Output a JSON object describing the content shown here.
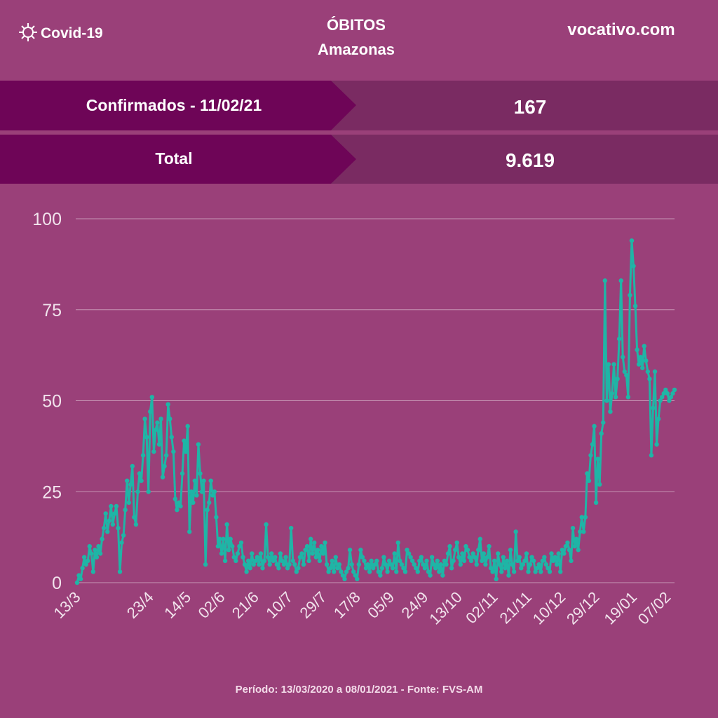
{
  "header": {
    "brand": "Covid-19",
    "title": "ÓBITOS",
    "subtitle": "Amazonas",
    "site": "vocativo.com"
  },
  "stats": [
    {
      "label": "Confirmados - 11/02/21",
      "value": "167"
    },
    {
      "label": "Total",
      "value": "9.619"
    }
  ],
  "footer": "Período: 13/03/2020 a 08/01/2021 - Fonte: FVS-AM",
  "chart_data": {
    "type": "line",
    "color": "#1fb5a6",
    "grid": true,
    "ylim": [
      0,
      100
    ],
    "yticks": [
      0,
      25,
      50,
      75,
      100
    ],
    "categories": [
      "13/3",
      null,
      null,
      null,
      null,
      null,
      null,
      null,
      null,
      null,
      null,
      null,
      null,
      null,
      null,
      null,
      null,
      null,
      null,
      null,
      null,
      null,
      null,
      null,
      null,
      null,
      null,
      null,
      null,
      null,
      null,
      null,
      null,
      null,
      null,
      null,
      null,
      null,
      null,
      null,
      null,
      "23/4",
      null,
      null,
      null,
      null,
      null,
      null,
      null,
      null,
      null,
      null,
      null,
      null,
      null,
      null,
      null,
      null,
      null,
      null,
      null,
      null,
      "14/5",
      null,
      null,
      null,
      null,
      null,
      null,
      null,
      null,
      null,
      null,
      null,
      null,
      null,
      null,
      null,
      null,
      null,
      null,
      "02/6",
      null,
      null,
      null,
      null,
      null,
      null,
      null,
      null,
      null,
      null,
      null,
      null,
      null,
      null,
      null,
      null,
      null,
      null,
      "21/6",
      null,
      null,
      null,
      null,
      null,
      null,
      null,
      null,
      null,
      null,
      null,
      null,
      null,
      null,
      null,
      null,
      null,
      null,
      "10/7",
      null,
      null,
      null,
      null,
      null,
      null,
      null,
      null,
      null,
      null,
      null,
      null,
      null,
      null,
      null,
      null,
      null,
      null,
      "29/7",
      null,
      null,
      null,
      null,
      null,
      null,
      null,
      null,
      null,
      null,
      null,
      null,
      null,
      null,
      null,
      null,
      null,
      null,
      "17/8",
      null,
      null,
      null,
      null,
      null,
      null,
      null,
      null,
      null,
      null,
      null,
      null,
      null,
      null,
      null,
      null,
      null,
      null,
      "05/9",
      null,
      null,
      null,
      null,
      null,
      null,
      null,
      null,
      null,
      null,
      null,
      null,
      null,
      null,
      null,
      null,
      null,
      null,
      "24/9",
      null,
      null,
      null,
      null,
      null,
      null,
      null,
      null,
      null,
      null,
      null,
      null,
      null,
      null,
      null,
      null,
      null,
      null,
      "13/10",
      null,
      null,
      null,
      null,
      null,
      null,
      null,
      null,
      null,
      null,
      null,
      null,
      null,
      null,
      null,
      null,
      null,
      null,
      null,
      "02/11",
      null,
      null,
      null,
      null,
      null,
      null,
      null,
      null,
      null,
      null,
      null,
      null,
      null,
      null,
      null,
      null,
      null,
      null,
      "21/11",
      null,
      null,
      null,
      null,
      null,
      null,
      null,
      null,
      null,
      null,
      null,
      null,
      null,
      null,
      null,
      null,
      null,
      null,
      "10/12",
      null,
      null,
      null,
      null,
      null,
      null,
      null,
      null,
      null,
      null,
      null,
      null,
      null,
      null,
      null,
      null,
      null,
      null,
      "29/12",
      null,
      null,
      null,
      null,
      null,
      null,
      null,
      null,
      null,
      null,
      null,
      null,
      null,
      null,
      null,
      null,
      null,
      null,
      null,
      null,
      "19/01",
      null,
      null,
      null,
      null,
      null,
      null,
      null,
      null,
      null,
      null,
      null,
      null,
      null,
      null,
      null,
      null,
      null,
      null,
      "07/02",
      null,
      null,
      null,
      null
    ],
    "values": [
      0,
      2,
      1,
      4,
      7,
      5,
      6,
      10,
      8,
      3,
      9,
      7,
      10,
      8,
      12,
      15,
      19,
      14,
      17,
      21,
      16,
      19,
      21,
      15,
      3,
      11,
      13,
      20,
      28,
      22,
      27,
      32,
      18,
      16,
      25,
      30,
      28,
      35,
      45,
      40,
      25,
      47,
      51,
      36,
      42,
      44,
      38,
      45,
      29,
      32,
      35,
      49,
      45,
      40,
      36,
      23,
      20,
      22,
      21,
      30,
      39,
      36,
      43,
      14,
      25,
      22,
      28,
      24,
      38,
      30,
      25,
      28,
      5,
      20,
      22,
      28,
      24,
      25,
      18,
      10,
      12,
      8,
      12,
      6,
      16,
      9,
      12,
      10,
      7,
      6,
      8,
      10,
      11,
      7,
      5,
      3,
      6,
      4,
      8,
      5,
      6,
      7,
      5,
      8,
      4,
      6,
      16,
      7,
      5,
      8,
      6,
      7,
      5,
      4,
      8,
      6,
      5,
      7,
      4,
      5,
      15,
      6,
      5,
      3,
      4,
      7,
      8,
      5,
      9,
      10,
      6,
      12,
      8,
      11,
      7,
      9,
      6,
      10,
      8,
      11,
      5,
      3,
      4,
      6,
      3,
      7,
      4,
      5,
      3,
      2,
      1,
      3,
      4,
      9,
      5,
      3,
      2,
      1,
      5,
      9,
      7,
      6,
      4,
      5,
      3,
      6,
      4,
      5,
      6,
      3,
      2,
      4,
      7,
      5,
      3,
      6,
      5,
      4,
      8,
      3,
      11,
      6,
      5,
      4,
      3,
      9,
      8,
      7,
      6,
      5,
      4,
      3,
      6,
      7,
      5,
      4,
      6,
      3,
      2,
      7,
      5,
      4,
      6,
      3,
      5,
      2,
      6,
      5,
      8,
      10,
      4,
      6,
      9,
      11,
      7,
      5,
      8,
      6,
      10,
      9,
      7,
      6,
      8,
      7,
      5,
      9,
      12,
      6,
      8,
      5,
      7,
      10,
      4,
      3,
      6,
      1,
      8,
      5,
      3,
      7,
      4,
      6,
      2,
      9,
      5,
      3,
      14,
      6,
      7,
      4,
      5,
      6,
      8,
      3,
      5,
      7,
      6,
      3,
      4,
      5,
      3,
      6,
      7,
      5,
      4,
      3,
      8,
      6,
      7,
      5,
      8,
      3,
      9,
      8,
      10,
      11,
      9,
      6,
      15,
      10,
      12,
      9,
      14,
      18,
      14,
      18,
      30,
      28,
      35,
      38,
      43,
      22,
      34,
      27,
      41,
      44,
      83,
      50,
      60,
      47,
      52,
      60,
      51,
      56,
      67,
      83,
      62,
      58,
      57,
      51,
      79,
      94,
      87,
      76,
      64,
      60,
      62,
      59,
      65,
      61,
      58,
      56,
      35,
      48,
      58,
      38,
      45,
      50,
      51,
      52,
      53,
      52,
      50,
      51,
      52,
      53
    ]
  }
}
